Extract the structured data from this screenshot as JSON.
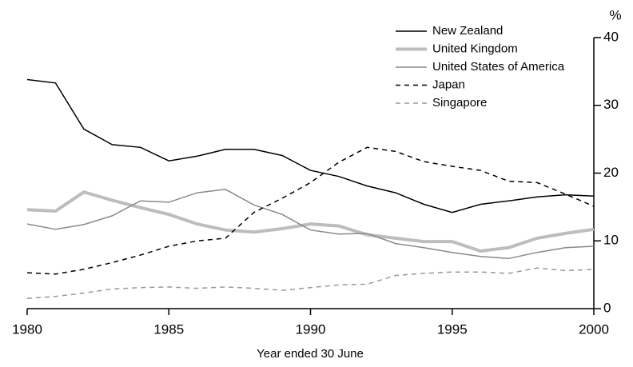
{
  "chart_data": {
    "type": "line",
    "x_label": "Year ended 30 June",
    "y_unit": "%",
    "x": [
      1980,
      1981,
      1982,
      1983,
      1984,
      1985,
      1986,
      1987,
      1988,
      1989,
      1990,
      1991,
      1992,
      1993,
      1994,
      1995,
      1996,
      1997,
      1998,
      1999,
      2000
    ],
    "xlim": [
      1980,
      2000
    ],
    "xticks": [
      1980,
      1985,
      1990,
      1995,
      2000
    ],
    "ylim": [
      0,
      40
    ],
    "yticks": [
      0,
      10,
      20,
      30,
      40
    ],
    "legend": "top-right",
    "series": [
      {
        "name": "New Zealand",
        "color": "#000000",
        "width": 1.5,
        "dash": "none",
        "values": [
          33.8,
          33.3,
          26.5,
          24.2,
          23.8,
          21.8,
          22.5,
          23.5,
          23.5,
          22.6,
          20.4,
          19.5,
          18.1,
          17.1,
          15.4,
          14.2,
          15.4,
          15.9,
          16.5,
          16.8,
          16.6
        ]
      },
      {
        "name": "United Kingdom",
        "color": "#bdbdbd",
        "width": 4,
        "dash": "none",
        "values": [
          14.6,
          14.4,
          17.2,
          16.0,
          14.9,
          13.9,
          12.5,
          11.6,
          11.3,
          11.8,
          12.5,
          12.2,
          10.9,
          10.4,
          9.9,
          9.9,
          8.5,
          9.0,
          10.4,
          11.1,
          11.7
        ]
      },
      {
        "name": "United States of America",
        "color": "#8a8a8a",
        "width": 1.5,
        "dash": "none",
        "values": [
          12.5,
          11.7,
          12.4,
          13.7,
          15.9,
          15.7,
          17.1,
          17.6,
          15.3,
          13.9,
          11.6,
          11.0,
          11.1,
          9.6,
          9.0,
          8.3,
          7.7,
          7.4,
          8.3,
          9.0,
          9.2
        ]
      },
      {
        "name": "Japan",
        "color": "#000000",
        "width": 1.5,
        "dash": "6 5",
        "values": [
          5.3,
          5.1,
          5.8,
          6.8,
          7.9,
          9.2,
          10.0,
          10.4,
          14.2,
          16.3,
          18.6,
          21.6,
          23.8,
          23.2,
          21.7,
          21.0,
          20.4,
          18.8,
          18.6,
          16.9,
          15.1
        ]
      },
      {
        "name": "Singapore",
        "color": "#9a9a9a",
        "width": 1.5,
        "dash": "6 5",
        "values": [
          1.5,
          1.8,
          2.3,
          2.9,
          3.1,
          3.2,
          3.0,
          3.2,
          3.0,
          2.7,
          3.1,
          3.5,
          3.6,
          4.9,
          5.2,
          5.4,
          5.4,
          5.2,
          6.0,
          5.6,
          5.8
        ]
      }
    ]
  }
}
